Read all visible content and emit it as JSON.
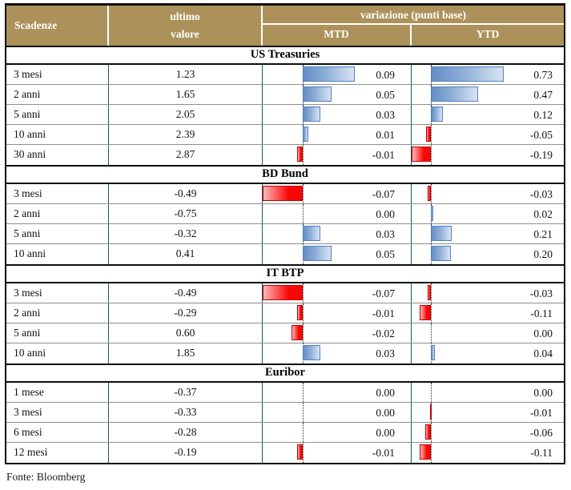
{
  "header": {
    "maturity": "Scadenze",
    "value_line1": "ultimo",
    "value_line2": "valore",
    "variation": "variazione (punti base)",
    "mtd": "MTD",
    "ytd": "YTD"
  },
  "footer": {
    "source": "Fonte: Bloomberg"
  },
  "colors": {
    "header_bg": "#AC925A",
    "header_text": "#ffffff",
    "divider_teal": "#1B5566",
    "row_separator": "#8f8f8f",
    "positive_bar": "#638EC6",
    "positive_bar_border": "#4F81BD",
    "negative_bar": "#FB0505",
    "negative_bar_border": "#C00000"
  },
  "chart_data": {
    "type": "table",
    "title": "Scadenze - ultimo valore - variazione (punti base) MTD / YTD",
    "columns": [
      "Scadenze",
      "ultimo valore",
      "variazione MTD (punti base)",
      "variazione YTD (punti base)"
    ],
    "bar_axes": {
      "mtd": {
        "min": -0.07,
        "max": 0.09
      },
      "ytd": {
        "min": -0.19,
        "max": 0.73
      }
    },
    "sections": [
      {
        "title": "US Treasuries",
        "rows": [
          {
            "label": "3 mesi",
            "value": 1.23,
            "mtd": 0.09,
            "ytd": 0.73
          },
          {
            "label": "2 anni",
            "value": 1.65,
            "mtd": 0.05,
            "ytd": 0.47
          },
          {
            "label": "5 anni",
            "value": 2.05,
            "mtd": 0.03,
            "ytd": 0.12
          },
          {
            "label": "10 anni",
            "value": 2.39,
            "mtd": 0.01,
            "ytd": -0.05
          },
          {
            "label": "30 anni",
            "value": 2.87,
            "mtd": -0.01,
            "ytd": -0.19
          }
        ]
      },
      {
        "title": "BD Bund",
        "rows": [
          {
            "label": "3 mesi",
            "value": -0.49,
            "mtd": -0.07,
            "ytd": -0.03
          },
          {
            "label": "2 anni",
            "value": -0.75,
            "mtd": 0.0,
            "ytd": 0.02
          },
          {
            "label": "5 anni",
            "value": -0.32,
            "mtd": 0.03,
            "ytd": 0.21
          },
          {
            "label": "10 anni",
            "value": 0.41,
            "mtd": 0.05,
            "ytd": 0.2
          }
        ]
      },
      {
        "title": "IT BTP",
        "rows": [
          {
            "label": "3 mesi",
            "value": -0.49,
            "mtd": -0.07,
            "ytd": -0.03
          },
          {
            "label": "2 anni",
            "value": -0.29,
            "mtd": -0.01,
            "ytd": -0.11
          },
          {
            "label": "5 anni",
            "value": 0.6,
            "mtd": -0.02,
            "ytd": 0.0
          },
          {
            "label": "10 anni",
            "value": 1.85,
            "mtd": 0.03,
            "ytd": 0.04
          }
        ]
      },
      {
        "title": "Euribor",
        "rows": [
          {
            "label": "1 mese",
            "value": -0.37,
            "mtd": 0.0,
            "ytd": 0.0
          },
          {
            "label": "3 mesi",
            "value": -0.33,
            "mtd": 0.0,
            "ytd": -0.01
          },
          {
            "label": "6 mesi",
            "value": -0.28,
            "mtd": 0.0,
            "ytd": -0.06
          },
          {
            "label": "12 mesi",
            "value": -0.19,
            "mtd": -0.01,
            "ytd": -0.11
          }
        ]
      }
    ]
  }
}
